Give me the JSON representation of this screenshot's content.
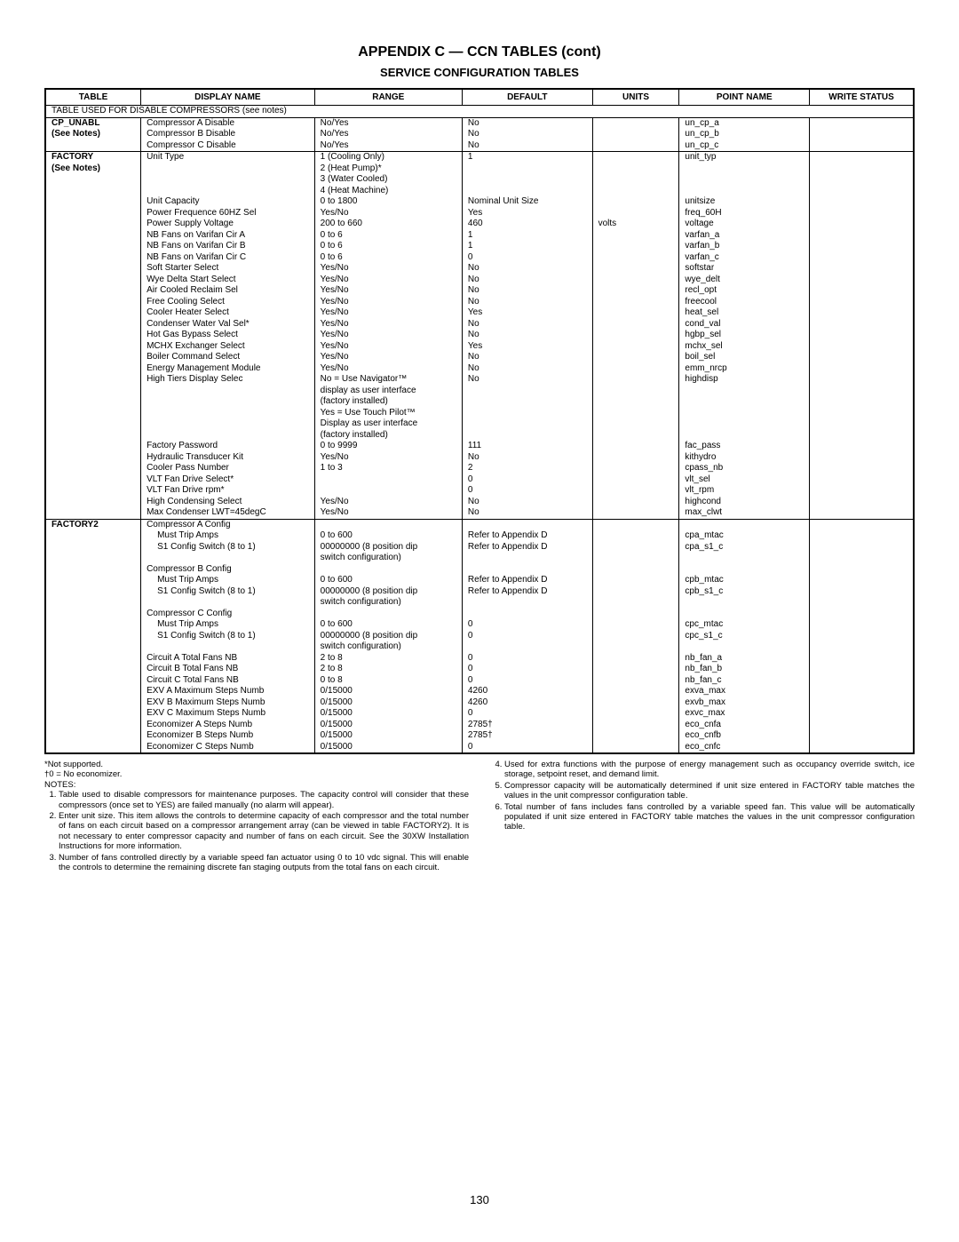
{
  "title": "APPENDIX C — CCN TABLES (cont)",
  "subtitle": "SERVICE CONFIGURATION TABLES",
  "headers": {
    "table": "TABLE",
    "display": "DISPLAY NAME",
    "range": "RANGE",
    "default": "DEFAULT",
    "units": "UNITS",
    "point": "POINT NAME",
    "write": "WRITE STATUS"
  },
  "section_header": "TABLE USED FOR DISABLE COMPRESSORS (see notes)",
  "cp_unabl": {
    "label1": "CP_UNABL",
    "label2": "(See Notes)",
    "rows": [
      {
        "d": "Compressor A Disable",
        "r": "No/Yes",
        "def": "No",
        "p": "un_cp_a"
      },
      {
        "d": "Compressor B Disable",
        "r": "No/Yes",
        "def": "No",
        "p": "un_cp_b"
      },
      {
        "d": "Compressor C Disable",
        "r": "No/Yes",
        "def": "No",
        "p": "un_cp_c"
      }
    ]
  },
  "factory": {
    "label1": "FACTORY",
    "label2": "(See Notes)",
    "unit_type": {
      "d": "Unit Type",
      "r1": "1 (Cooling Only)",
      "r2": "2 (Heat Pump)*",
      "r3": "3 (Water Cooled)",
      "r4": "4 (Heat Machine)",
      "def": "1",
      "p": "unit_typ"
    },
    "rows": [
      {
        "d": "Unit Capacity",
        "r": "0 to 1800",
        "def": "Nominal Unit Size",
        "u": "",
        "p": "unitsize"
      },
      {
        "d": "Power Frequence 60HZ Sel",
        "r": "Yes/No",
        "def": "Yes",
        "u": "",
        "p": "freq_60H"
      },
      {
        "d": "Power Supply Voltage",
        "r": "200 to 660",
        "def": "460",
        "u": "volts",
        "p": "voltage"
      },
      {
        "d": "NB Fans on Varifan Cir A",
        "r": "0 to 6",
        "def": "1",
        "u": "",
        "p": "varfan_a"
      },
      {
        "d": "NB Fans on Varifan Cir B",
        "r": "0 to 6",
        "def": "1",
        "u": "",
        "p": "varfan_b"
      },
      {
        "d": "NB Fans on Varifan Cir C",
        "r": "0 to 6",
        "def": "0",
        "u": "",
        "p": "varfan_c"
      },
      {
        "d": "Soft Starter Select",
        "r": "Yes/No",
        "def": "No",
        "u": "",
        "p": "softstar"
      },
      {
        "d": "Wye Delta Start Select",
        "r": "Yes/No",
        "def": "No",
        "u": "",
        "p": "wye_delt"
      },
      {
        "d": "Air Cooled Reclaim Sel",
        "r": "Yes/No",
        "def": "No",
        "u": "",
        "p": "recl_opt"
      },
      {
        "d": "Free Cooling Select",
        "r": "Yes/No",
        "def": "No",
        "u": "",
        "p": "freecool"
      },
      {
        "d": "Cooler Heater Select",
        "r": "Yes/No",
        "def": "Yes",
        "u": "",
        "p": "heat_sel"
      },
      {
        "d": "Condenser Water Val Sel*",
        "r": "Yes/No",
        "def": "No",
        "u": "",
        "p": "cond_val"
      },
      {
        "d": "Hot Gas Bypass Select",
        "r": "Yes/No",
        "def": "No",
        "u": "",
        "p": "hgbp_sel"
      },
      {
        "d": "MCHX Exchanger Select",
        "r": "Yes/No",
        "def": "Yes",
        "u": "",
        "p": "mchx_sel"
      },
      {
        "d": "Boiler Command Select",
        "r": "Yes/No",
        "def": "No",
        "u": "",
        "p": "boil_sel"
      },
      {
        "d": "Energy Management Module",
        "r": "Yes/No",
        "def": "No",
        "u": "",
        "p": "emm_nrcp"
      }
    ],
    "high_tiers": {
      "d": "High Tiers Display Selec",
      "r1": "No = Use Navigator™",
      "r2": "display as user interface",
      "r3": "(factory installed)",
      "r4": "Yes = Use Touch Pilot™",
      "r5": "Display as user interface",
      "r6": "(factory installed)",
      "def": "No",
      "p": "highdisp"
    },
    "rows2": [
      {
        "d": "Factory Password",
        "r": "0 to 9999",
        "def": "111",
        "u": "",
        "p": "fac_pass"
      },
      {
        "d": "Hydraulic Transducer Kit",
        "r": "Yes/No",
        "def": "No",
        "u": "",
        "p": "kithydro"
      },
      {
        "d": "Cooler Pass Number",
        "r": "1 to 3",
        "def": "2",
        "u": "",
        "p": "cpass_nb"
      },
      {
        "d": "VLT Fan Drive Select*",
        "r": "",
        "def": "0",
        "u": "",
        "p": "vlt_sel"
      },
      {
        "d": "VLT Fan Drive rpm*",
        "r": "",
        "def": "0",
        "u": "",
        "p": "vlt_rpm"
      },
      {
        "d": "High Condensing Select",
        "r": "Yes/No",
        "def": "No",
        "u": "",
        "p": "highcond"
      },
      {
        "d": "Max Condenser LWT=45degC",
        "r": "Yes/No",
        "def": "No",
        "u": "",
        "p": "max_clwt"
      }
    ]
  },
  "factory2": {
    "label": "FACTORY2",
    "compA": {
      "title": "Compressor A Config",
      "r1d": "Must Trip Amps",
      "r1r": "0 to 600",
      "r1def": "Refer to Appendix D",
      "r1p": "cpa_mtac",
      "r2d": "S1 Config Switch (8 to 1)",
      "r2r": "00000000 (8 position dip",
      "r2r2": "switch configuration)",
      "r2def": "Refer to Appendix D",
      "r2p": "cpa_s1_c"
    },
    "compB": {
      "title": "Compressor B Config",
      "r1d": "Must Trip Amps",
      "r1r": "0 to 600",
      "r1def": "Refer to Appendix D",
      "r1p": "cpb_mtac",
      "r2d": "S1 Config Switch (8 to 1)",
      "r2r": "00000000 (8 position dip",
      "r2r2": "switch configuration)",
      "r2def": "Refer to Appendix D",
      "r2p": "cpb_s1_c"
    },
    "compC": {
      "title": "Compressor C Config",
      "r1d": "Must Trip Amps",
      "r1r": "0 to 600",
      "r1def": "0",
      "r1p": "cpc_mtac",
      "r2d": "S1 Config Switch (8 to 1)",
      "r2r": "00000000 (8 position dip",
      "r2r2": "switch configuration)",
      "r2def": "0",
      "r2p": "cpc_s1_c"
    },
    "rows": [
      {
        "d": "Circuit A Total Fans NB",
        "r": "2 to 8",
        "def": "0",
        "p": "nb_fan_a"
      },
      {
        "d": "Circuit B Total Fans NB",
        "r": "2 to 8",
        "def": "0",
        "p": "nb_fan_b"
      },
      {
        "d": "Circuit C Total Fans NB",
        "r": "0 to 8",
        "def": "0",
        "p": "nb_fan_c"
      },
      {
        "d": "EXV A Maximum Steps Numb",
        "r": "0/15000",
        "def": "4260",
        "p": "exva_max"
      },
      {
        "d": "EXV B Maximum Steps Numb",
        "r": "0/15000",
        "def": "4260",
        "p": "exvb_max"
      },
      {
        "d": "EXV C Maximum Steps Numb",
        "r": "0/15000",
        "def": "0",
        "p": "exvc_max"
      },
      {
        "d": "Economizer A Steps Numb",
        "r": "0/15000",
        "def": "2785†",
        "p": "eco_cnfa"
      },
      {
        "d": "Economizer B Steps Numb",
        "r": "0/15000",
        "def": "2785†",
        "p": "eco_cnfb"
      },
      {
        "d": "Economizer C Steps Numb",
        "r": "0/15000",
        "def": "0",
        "p": "eco_cnfc"
      }
    ]
  },
  "footnotes": {
    "star": "*Not supported.",
    "dagger": "†0 = No economizer.",
    "notes_label": "NOTES:",
    "n1": "Table used to disable compressors for maintenance purposes. The capacity control will consider that these compressors (once set to YES) are failed manually (no alarm will appear).",
    "n2": "Enter unit size. This item allows the controls to determine capacity of each compressor and the total number of fans on each circuit based on a compressor arrangement array (can be viewed in table FACTORY2). It is not necessary to enter compressor capacity and number of fans on each circuit. See the 30XW Installation Instructions for more information.",
    "n3": "Number of fans controlled directly by a variable speed fan actuator using 0 to 10 vdc signal. This will enable the controls to determine the remaining discrete fan staging outputs from the total fans on each circuit.",
    "n4": "Used for extra functions with the purpose of energy management such as occupancy override switch, ice storage, setpoint reset, and demand limit.",
    "n5": "Compressor capacity will be automatically determined if unit size entered in FACTORY table matches the values in the unit compressor configuration table.",
    "n6": "Total number of fans includes fans controlled by a variable speed fan. This value will be automatically populated if unit size entered in FACTORY table matches the values in the unit compressor configuration table."
  },
  "page_number": "130"
}
